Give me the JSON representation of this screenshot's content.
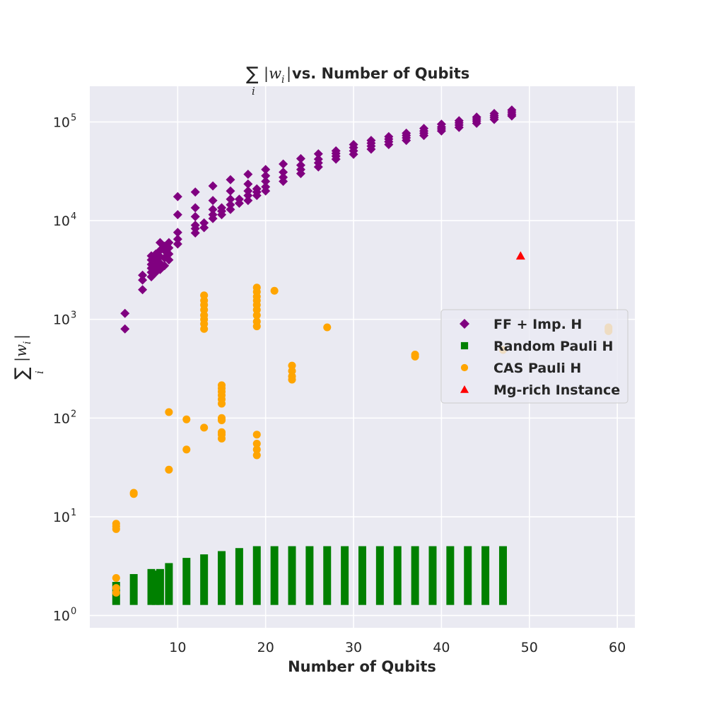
{
  "chart_data": {
    "type": "scatter",
    "title": "∑|w_i| vs. Number of Qubits",
    "title_parts": {
      "sum": "∑",
      "sub": "i",
      "abs": "|w",
      "abs_sub": "i",
      "abs_close": "|",
      "rest": " vs. Number of Qubits"
    },
    "xlabel": "Number of Qubits",
    "ylabel": "∑|w_i|",
    "ylabel_parts": {
      "sum": "∑",
      "sub": "i",
      "abs": "|w",
      "abs_sub": "i",
      "abs_close": "|"
    },
    "y_scale": "log",
    "xlim": [
      0,
      62
    ],
    "ylim": [
      0.75,
      230000
    ],
    "x_ticks": [
      10,
      20,
      30,
      40,
      50,
      60
    ],
    "y_ticks": [
      {
        "value": 1,
        "base": "10",
        "exp": "0"
      },
      {
        "value": 10,
        "base": "10",
        "exp": "1"
      },
      {
        "value": 100,
        "base": "10",
        "exp": "2"
      },
      {
        "value": 1000,
        "base": "10",
        "exp": "3"
      },
      {
        "value": 10000,
        "base": "10",
        "exp": "4"
      },
      {
        "value": 100000,
        "base": "10",
        "exp": "5"
      }
    ],
    "grid": true,
    "legend_position": "center-right",
    "series": [
      {
        "name": "FF + Imp. H",
        "color": "#800080",
        "marker": "diamond",
        "points": [
          [
            4,
            800
          ],
          [
            4,
            1150
          ],
          [
            6,
            2000
          ],
          [
            6,
            2500
          ],
          [
            6,
            2800
          ],
          [
            7,
            2700
          ],
          [
            7,
            3000
          ],
          [
            7,
            3300
          ],
          [
            7,
            3600
          ],
          [
            7,
            4000
          ],
          [
            7,
            4400
          ],
          [
            7.5,
            3000
          ],
          [
            7.5,
            3500
          ],
          [
            7.5,
            4000
          ],
          [
            7.5,
            4600
          ],
          [
            8,
            3200
          ],
          [
            8,
            3700
          ],
          [
            8,
            4300
          ],
          [
            8,
            5000
          ],
          [
            8,
            6000
          ],
          [
            8.5,
            3500
          ],
          [
            8.5,
            4200
          ],
          [
            8.5,
            5000
          ],
          [
            8.5,
            5500
          ],
          [
            9,
            4000
          ],
          [
            9,
            4600
          ],
          [
            9,
            5300
          ],
          [
            9,
            6000
          ],
          [
            10,
            5800
          ],
          [
            10,
            6500
          ],
          [
            10,
            7600
          ],
          [
            10,
            11500
          ],
          [
            10,
            17500
          ],
          [
            12,
            7500
          ],
          [
            12,
            8300
          ],
          [
            12,
            9000
          ],
          [
            12,
            11000
          ],
          [
            12,
            13500
          ],
          [
            12,
            19500
          ],
          [
            13,
            8500
          ],
          [
            13,
            9500
          ],
          [
            14,
            10500
          ],
          [
            14,
            11500
          ],
          [
            14,
            13000
          ],
          [
            14,
            16000
          ],
          [
            14,
            22500
          ],
          [
            15,
            11500
          ],
          [
            15,
            12500
          ],
          [
            15,
            13500
          ],
          [
            16,
            13000
          ],
          [
            16,
            14500
          ],
          [
            16,
            16500
          ],
          [
            16,
            20000
          ],
          [
            16,
            26000
          ],
          [
            17,
            15000
          ],
          [
            17,
            16500
          ],
          [
            18,
            16000
          ],
          [
            18,
            18000
          ],
          [
            18,
            20000
          ],
          [
            18,
            23500
          ],
          [
            18,
            29500
          ],
          [
            19,
            18000
          ],
          [
            19,
            19500
          ],
          [
            19,
            21000
          ],
          [
            20,
            20000
          ],
          [
            20,
            22000
          ],
          [
            20,
            25000
          ],
          [
            20,
            28500
          ],
          [
            20,
            33000
          ],
          [
            22,
            25000
          ],
          [
            22,
            27500
          ],
          [
            22,
            31000
          ],
          [
            22,
            37500
          ],
          [
            24,
            30000
          ],
          [
            24,
            33000
          ],
          [
            24,
            36500
          ],
          [
            24,
            42500
          ],
          [
            26,
            35000
          ],
          [
            26,
            38500
          ],
          [
            26,
            42000
          ],
          [
            26,
            47500
          ],
          [
            28,
            42000
          ],
          [
            28,
            45000
          ],
          [
            28,
            48000
          ],
          [
            28,
            51000
          ],
          [
            30,
            47000
          ],
          [
            30,
            51000
          ],
          [
            30,
            55000
          ],
          [
            30,
            59000
          ],
          [
            32,
            53000
          ],
          [
            32,
            57000
          ],
          [
            32,
            61000
          ],
          [
            32,
            65000
          ],
          [
            34,
            59000
          ],
          [
            34,
            63000
          ],
          [
            34,
            67000
          ],
          [
            34,
            71000
          ],
          [
            36,
            65000
          ],
          [
            36,
            69000
          ],
          [
            36,
            73000
          ],
          [
            36,
            77000
          ],
          [
            38,
            73000
          ],
          [
            38,
            77000
          ],
          [
            38,
            81000
          ],
          [
            38,
            86000
          ],
          [
            40,
            81000
          ],
          [
            40,
            85000
          ],
          [
            40,
            89000
          ],
          [
            40,
            95000
          ],
          [
            42,
            88000
          ],
          [
            42,
            93000
          ],
          [
            42,
            98000
          ],
          [
            42,
            103000
          ],
          [
            44,
            97000
          ],
          [
            44,
            102000
          ],
          [
            44,
            107000
          ],
          [
            44,
            112000
          ],
          [
            46,
            106000
          ],
          [
            46,
            111000
          ],
          [
            46,
            116000
          ],
          [
            46,
            122000
          ],
          [
            48,
            115000
          ],
          [
            48,
            120000
          ],
          [
            48,
            126000
          ],
          [
            48,
            132000
          ]
        ]
      },
      {
        "name": "Random Pauli H",
        "color": "#008000",
        "marker": "square",
        "columns": [
          [
            3,
            2.0
          ],
          [
            5,
            2.4
          ],
          [
            7,
            2.7
          ],
          [
            7.5,
            2.6
          ],
          [
            8,
            2.7
          ],
          [
            9,
            3.1
          ],
          [
            11,
            3.5
          ],
          [
            13,
            3.8
          ],
          [
            15,
            4.1
          ],
          [
            17,
            4.4
          ],
          [
            19,
            4.6
          ],
          [
            21,
            4.6
          ],
          [
            23,
            4.6
          ],
          [
            25,
            4.6
          ],
          [
            27,
            4.6
          ],
          [
            29,
            4.6
          ],
          [
            31,
            4.6
          ],
          [
            33,
            4.6
          ],
          [
            35,
            4.6
          ],
          [
            37,
            4.6
          ],
          [
            39,
            4.6
          ],
          [
            41,
            4.6
          ],
          [
            43,
            4.6
          ],
          [
            45,
            4.6
          ],
          [
            47,
            4.6
          ]
        ],
        "column_min": 1.4
      },
      {
        "name": "CAS Pauli H",
        "color": "#FFA500",
        "marker": "circle",
        "points": [
          [
            3,
            1.7
          ],
          [
            3,
            1.9
          ],
          [
            3,
            2.4
          ],
          [
            3,
            7.5
          ],
          [
            3,
            8.0
          ],
          [
            3,
            8.5
          ],
          [
            5,
            17
          ],
          [
            5,
            17.5
          ],
          [
            9,
            30
          ],
          [
            9,
            115
          ],
          [
            11,
            48
          ],
          [
            11,
            97
          ],
          [
            13,
            80
          ],
          [
            13,
            800
          ],
          [
            13,
            900
          ],
          [
            13,
            1000
          ],
          [
            13,
            1100
          ],
          [
            13,
            1250
          ],
          [
            13,
            1400
          ],
          [
            13,
            1550
          ],
          [
            13,
            1750
          ],
          [
            15,
            62
          ],
          [
            15,
            68
          ],
          [
            15,
            72
          ],
          [
            15,
            95
          ],
          [
            15,
            100
          ],
          [
            15,
            140
          ],
          [
            15,
            155
          ],
          [
            15,
            170
          ],
          [
            15,
            185
          ],
          [
            15,
            200
          ],
          [
            15,
            215
          ],
          [
            19,
            42
          ],
          [
            19,
            48
          ],
          [
            19,
            55
          ],
          [
            19,
            68
          ],
          [
            19,
            850
          ],
          [
            19,
            950
          ],
          [
            19,
            1100
          ],
          [
            19,
            1250
          ],
          [
            19,
            1400
          ],
          [
            19,
            1550
          ],
          [
            19,
            1700
          ],
          [
            19,
            1900
          ],
          [
            19,
            2100
          ],
          [
            21,
            1950
          ],
          [
            23,
            245
          ],
          [
            23,
            265
          ],
          [
            23,
            300
          ],
          [
            23,
            340
          ],
          [
            27,
            830
          ],
          [
            37,
            420
          ],
          [
            37,
            440
          ],
          [
            47,
            490
          ],
          [
            59,
            760
          ],
          [
            59,
            800
          ],
          [
            59,
            830
          ]
        ]
      },
      {
        "name": "Mg-rich Instance",
        "color": "#FF0000",
        "marker": "triangle",
        "points": [
          [
            49,
            4400
          ]
        ]
      }
    ]
  }
}
